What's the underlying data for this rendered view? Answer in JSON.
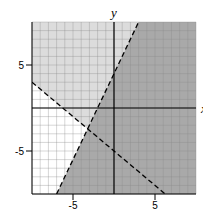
{
  "chart_data": {
    "type": "inequality_graph",
    "xlabel": "x",
    "ylabel": "y",
    "xlim": [
      -10,
      10
    ],
    "ylim": [
      -10,
      10
    ],
    "xticks": [
      -5,
      5
    ],
    "yticks": [
      -5,
      5
    ],
    "grid": true,
    "lines": [
      {
        "x": [
          -7,
          3
        ],
        "y": [
          -10,
          10
        ],
        "line_style": "dashed",
        "color": "#000000"
      },
      {
        "x": [
          -10,
          6.25
        ],
        "y": [
          3,
          -10
        ],
        "line_style": "dashed",
        "color": "#000000"
      }
    ],
    "regions": [
      {
        "color": "#dcdcdc",
        "x": [
          -10,
          -3.21,
          3
        ],
        "low": [
          3,
          -2.43,
          10
        ],
        "high": [
          10,
          10,
          10
        ]
      },
      {
        "color": "#a9a9a9",
        "x": [
          -7,
          3,
          10
        ],
        "low": [
          -10,
          -10,
          -10
        ],
        "high": [
          -10,
          10,
          10
        ]
      }
    ]
  }
}
